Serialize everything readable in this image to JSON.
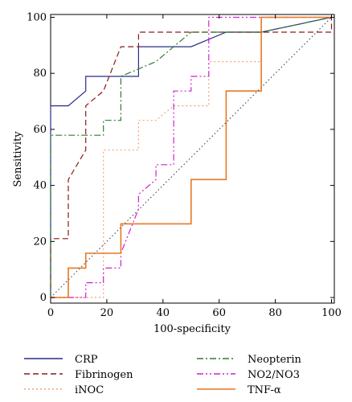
{
  "chart_data": {
    "type": "line",
    "xlabel": "100-specificity",
    "ylabel": "Sensitivity",
    "xlim": [
      0,
      101
    ],
    "ylim": [
      -2,
      101
    ],
    "x_ticks": [
      0,
      20,
      40,
      60,
      80,
      100
    ],
    "y_ticks": [
      0,
      20,
      40,
      60,
      80,
      100
    ],
    "grid": false,
    "legend_position": "bottom",
    "reference_line": {
      "points": [
        [
          0,
          0
        ],
        [
          100,
          100
        ]
      ],
      "color": "#333333",
      "style": "dotted"
    },
    "series": [
      {
        "name": "CRP",
        "color": "#2b2b8c",
        "style": "solid",
        "points": [
          [
            0,
            0
          ],
          [
            0,
            68.4
          ],
          [
            6.3,
            68.4
          ],
          [
            12.5,
            73.7
          ],
          [
            12.5,
            78.9
          ],
          [
            31.3,
            78.9
          ],
          [
            31.3,
            89.5
          ],
          [
            50,
            89.5
          ],
          [
            62.5,
            94.7
          ],
          [
            75,
            94.7
          ],
          [
            100,
            100
          ]
        ]
      },
      {
        "name": "Fibrinogen",
        "color": "#8b1a1a",
        "style": "dashed",
        "points": [
          [
            0,
            0
          ],
          [
            0,
            21
          ],
          [
            6.3,
            21
          ],
          [
            6.3,
            42.1
          ],
          [
            12.5,
            52.6
          ],
          [
            12.5,
            68.4
          ],
          [
            18.8,
            73.7
          ],
          [
            25,
            89.5
          ],
          [
            31.3,
            89.5
          ],
          [
            31.3,
            94.7
          ],
          [
            100,
            94.7
          ],
          [
            100,
            100
          ]
        ]
      },
      {
        "name": "iNOC",
        "color": "#f4a07a",
        "style": "dotted",
        "points": [
          [
            0,
            0
          ],
          [
            18.8,
            0
          ],
          [
            18.8,
            52.6
          ],
          [
            31.3,
            52.6
          ],
          [
            31.3,
            63.2
          ],
          [
            37.5,
            63.2
          ],
          [
            43.8,
            68.4
          ],
          [
            56.3,
            68.4
          ],
          [
            56.3,
            84.2
          ],
          [
            75,
            84.2
          ],
          [
            75,
            100
          ],
          [
            100,
            100
          ]
        ]
      },
      {
        "name": "Neopterin",
        "color": "#2e7d32",
        "style": "dashdot",
        "points": [
          [
            0,
            0
          ],
          [
            0,
            57.9
          ],
          [
            18.8,
            57.9
          ],
          [
            18.8,
            63.2
          ],
          [
            25,
            63.2
          ],
          [
            25,
            78.9
          ],
          [
            37.5,
            84.2
          ],
          [
            43.8,
            89.5
          ],
          [
            50,
            94.7
          ],
          [
            75,
            94.7
          ],
          [
            100,
            100
          ]
        ]
      },
      {
        "name": "NO2/NO3",
        "color": "#d020d0",
        "style": "dashdotdot",
        "points": [
          [
            0,
            0
          ],
          [
            12.5,
            0
          ],
          [
            12.5,
            5.3
          ],
          [
            18.8,
            5.3
          ],
          [
            18.8,
            10.5
          ],
          [
            25,
            10.5
          ],
          [
            25,
            15.8
          ],
          [
            31.3,
            31.6
          ],
          [
            31.3,
            36.8
          ],
          [
            37.5,
            42.1
          ],
          [
            37.5,
            47.4
          ],
          [
            43.8,
            47.4
          ],
          [
            43.8,
            73.7
          ],
          [
            50,
            73.7
          ],
          [
            50,
            78.9
          ],
          [
            56.3,
            78.9
          ],
          [
            56.3,
            100
          ],
          [
            100,
            100
          ]
        ]
      },
      {
        "name": "TNF-α",
        "color": "#e87722",
        "style": "solid",
        "points": [
          [
            0,
            0
          ],
          [
            6.3,
            0
          ],
          [
            6.3,
            10.5
          ],
          [
            12.5,
            10.5
          ],
          [
            12.5,
            15.8
          ],
          [
            25,
            15.8
          ],
          [
            25,
            26.3
          ],
          [
            50,
            26.3
          ],
          [
            50,
            42.1
          ],
          [
            62.5,
            42.1
          ],
          [
            62.5,
            73.7
          ],
          [
            75,
            73.7
          ],
          [
            75,
            100
          ],
          [
            100,
            100
          ]
        ]
      }
    ]
  }
}
